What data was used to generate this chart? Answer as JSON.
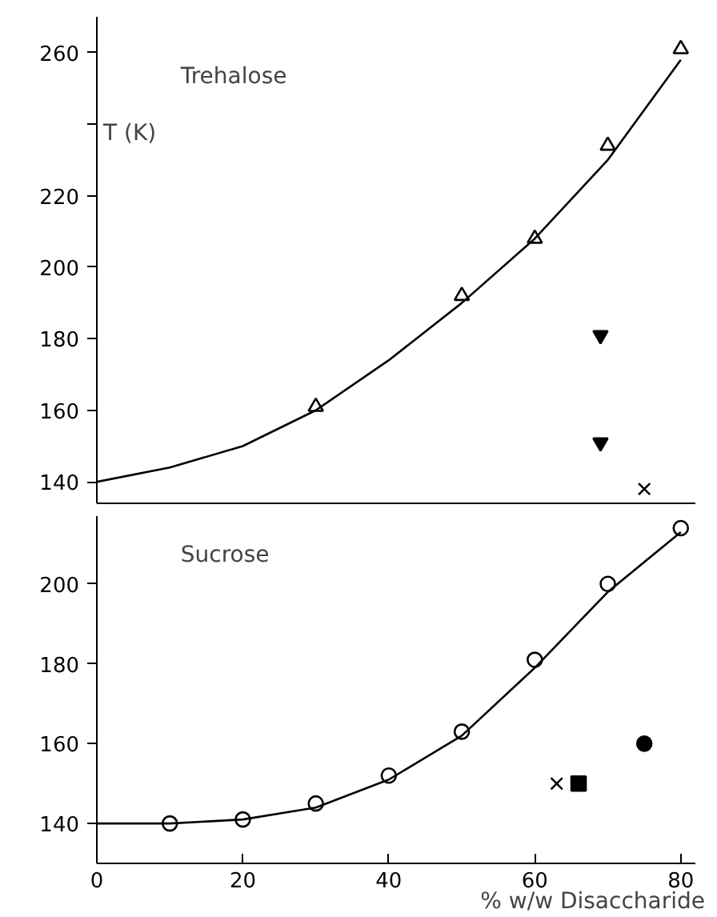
{
  "chart_data": [
    {
      "type": "scatter",
      "ylabel": "T (K)",
      "xlim": [
        0,
        82
      ],
      "xticks": [
        0,
        20,
        40,
        60,
        80
      ],
      "ylim": [
        134,
        270
      ],
      "yticks": [
        140,
        160,
        180,
        200,
        220,
        {
          "value": 240,
          "label": null
        },
        260
      ],
      "tick_labels": "y",
      "grid": false,
      "series": [
        {
          "name": "Trehalose",
          "color": "#000000",
          "marker": "triangle",
          "x": [
            30,
            50,
            60,
            70,
            80
          ],
          "values": [
            161,
            192,
            208,
            234,
            261
          ]
        },
        {
          "type": "line",
          "color": "#000000",
          "line_style": "solid",
          "x": [
            0,
            10,
            20,
            30,
            40,
            50,
            60,
            70,
            80
          ],
          "values": [
            140,
            144,
            150,
            160,
            174,
            190,
            208,
            230,
            258
          ]
        },
        {
          "color": "#000000",
          "marker": "triangle",
          "x": [
            69
          ],
          "values": [
            181
          ]
        },
        {
          "color": "#000000",
          "marker": "triangle",
          "x": [
            69
          ],
          "values": [
            151
          ]
        },
        {
          "color": "#000000",
          "marker": "cross",
          "x": [
            75
          ],
          "values": [
            138
          ]
        }
      ]
    },
    {
      "type": "scatter",
      "xlabel": "% w/w Disaccharide",
      "xlim": [
        0,
        82
      ],
      "ylim": [
        130,
        217
      ],
      "xticks": [
        0,
        20,
        40,
        60,
        80
      ],
      "yticks": [
        140,
        160,
        180,
        200
      ],
      "grid": false,
      "series": [
        {
          "name": "Sucrose",
          "color": "#000000",
          "marker": "circle",
          "x": [
            10,
            20,
            30,
            40,
            50,
            60,
            70,
            80
          ],
          "values": [
            140,
            141,
            145,
            152,
            163,
            181,
            200,
            214
          ]
        },
        {
          "type": "line",
          "color": "#000000",
          "line_style": "solid",
          "x": [
            0,
            10,
            20,
            30,
            40,
            50,
            60,
            70,
            80
          ],
          "values": [
            140,
            140,
            141,
            144,
            151,
            162,
            179,
            198,
            213
          ]
        },
        {
          "color": "#000000",
          "marker": "cross",
          "x": [
            63
          ],
          "values": [
            150
          ]
        },
        {
          "color": "#000000",
          "marker": "square",
          "x": [
            66
          ],
          "values": [
            150
          ]
        },
        {
          "color": "#000000",
          "marker": "circle",
          "x": [
            75
          ],
          "values": [
            160
          ]
        }
      ]
    }
  ]
}
